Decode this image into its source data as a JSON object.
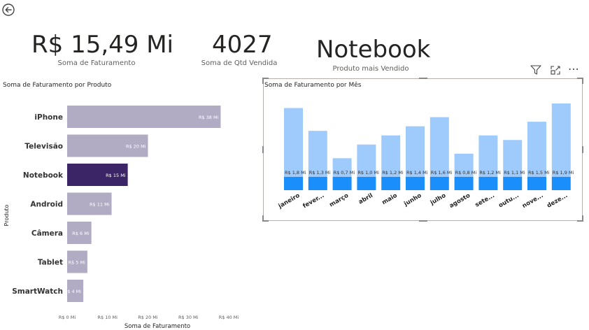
{
  "header": {
    "back_icon": "arrow-left-circle-icon"
  },
  "kpis": [
    {
      "value": "R$ 15,49 Mi",
      "label": "Soma de Faturamento"
    },
    {
      "value": "4027",
      "label": "Soma de Qtd Vendida"
    },
    {
      "value": "Notebook",
      "label": "Produto mais Vendido"
    }
  ],
  "visual_toolbar": {
    "filter_icon": "filter-icon",
    "focus_icon": "focus-mode-icon",
    "more_icon": "more-options-icon",
    "more_glyph": "⋯"
  },
  "colors": {
    "bar_default": "#b1abc3",
    "bar_highlight": "#3b2566",
    "month_bar_light": "#9ecbfb",
    "month_bar_dark": "#1a8ffc"
  },
  "chart_data": [
    {
      "type": "bar",
      "orientation": "horizontal",
      "title": "Soma de Faturamento por Produto",
      "xlabel": "Soma de Faturamento",
      "ylabel": "Produto",
      "categories": [
        "iPhone",
        "Televisão",
        "Notebook",
        "Android",
        "Câmera",
        "Tablet",
        "SmartWatch"
      ],
      "values": [
        38,
        20,
        15,
        11,
        6,
        5,
        4
      ],
      "data_labels": [
        "R$ 38 Mi",
        "R$ 20 Mi",
        "R$ 15 Mi",
        "R$ 11 Mi",
        "R$ 6 Mi",
        "R$ 5 Mi",
        "R$ 4 Mi"
      ],
      "highlighted": "Notebook",
      "xlim": [
        0,
        40
      ],
      "xticks": [
        "R$ 0 Mi",
        "R$ 10 Mi",
        "R$ 20 Mi",
        "R$ 30 Mi",
        "R$ 40 Mi"
      ],
      "grid": false
    },
    {
      "type": "bar",
      "orientation": "vertical",
      "title": "Soma de Faturamento por Mês",
      "categories": [
        "janeiro",
        "fever...",
        "março",
        "abril",
        "maio",
        "junho",
        "julho",
        "agosto",
        "sete...",
        "outu...",
        "nove...",
        "deze..."
      ],
      "values": [
        1.8,
        1.3,
        0.7,
        1.0,
        1.2,
        1.4,
        1.6,
        0.8,
        1.2,
        1.1,
        1.5,
        1.9
      ],
      "data_labels": [
        "R$ 1,8 Mi",
        "R$ 1,3 Mi",
        "R$ 0,7 Mi",
        "R$ 1,0 Mi",
        "R$ 1,2 Mi",
        "R$ 1,4 Mi",
        "R$ 1,6 Mi",
        "R$ 0,8 Mi",
        "R$ 1,2 Mi",
        "R$ 1,1 Mi",
        "R$ 1,5 Mi",
        "R$ 1,9 Mi"
      ],
      "grid": false
    }
  ]
}
